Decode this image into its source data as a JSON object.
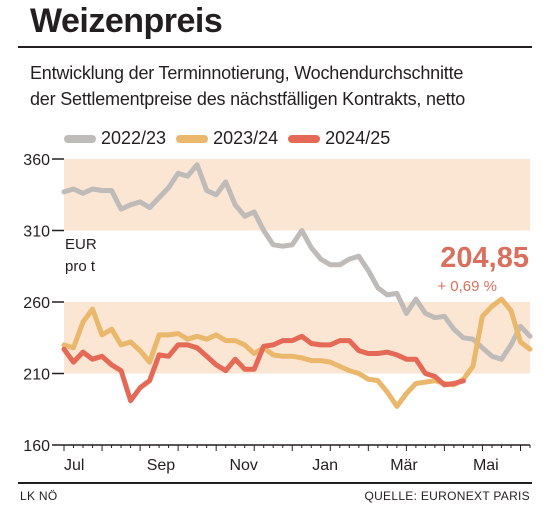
{
  "header": {
    "title": "Weizenpreis",
    "subtitle_line1": "Entwicklung der Terminnotierung, Wochendurchschnitte",
    "subtitle_line2": "der Settlementpreise des nächstfälligen Kontrakts, netto"
  },
  "footer": {
    "left": "LK NÖ",
    "right": "QUELLE: EURONEXT PARIS"
  },
  "colors": {
    "s2022": "#bfbbb8",
    "s2023": "#e9b86c",
    "s2024": "#e46a57",
    "band": "#fbe6d3",
    "callout": "#d9705e"
  },
  "chart_data": {
    "type": "line",
    "unit_label_line1": "EUR",
    "unit_label_line2": "pro t",
    "callout_value": "204,85",
    "callout_change": "+ 0,69 %",
    "ylim": [
      160,
      360
    ],
    "yticks": [
      "360",
      "310",
      "260",
      "210",
      "160"
    ],
    "xlim": [
      0,
      49
    ],
    "x_labels": [
      {
        "label": "Jul",
        "x": 0
      },
      {
        "label": "Sep",
        "x": 8.7
      },
      {
        "label": "Nov",
        "x": 17.4
      },
      {
        "label": "Jan",
        "x": 26.1
      },
      {
        "label": "Mär",
        "x": 34.3
      },
      {
        "label": "Mai",
        "x": 43
      }
    ],
    "series": [
      {
        "name": "2022/23",
        "values": [
          337,
          339,
          336,
          339,
          338,
          338,
          325,
          328,
          330,
          326,
          333,
          340,
          350,
          348,
          356,
          338,
          335,
          344,
          328,
          320,
          323,
          310,
          300,
          299,
          300,
          310,
          298,
          290,
          286,
          286,
          290,
          292,
          282,
          270,
          265,
          266,
          252,
          262,
          252,
          249,
          250,
          241,
          235,
          234,
          228,
          222,
          220,
          230,
          243,
          236
        ]
      },
      {
        "name": "2023/24",
        "values": [
          230,
          228,
          246,
          255,
          237,
          241,
          230,
          232,
          226,
          218,
          237,
          237,
          238,
          234,
          236,
          234,
          237,
          233,
          233,
          230,
          224,
          228,
          223,
          222,
          222,
          221,
          219,
          219,
          218,
          215,
          212,
          210,
          206,
          205,
          197,
          187,
          196,
          203,
          204,
          205,
          203,
          202,
          206,
          215,
          250,
          257,
          262,
          254,
          232,
          227
        ]
      },
      {
        "name": "2024/25",
        "values": [
          227,
          218,
          225,
          220,
          222,
          216,
          212,
          191,
          200,
          205,
          223,
          222,
          230,
          230,
          228,
          222,
          216,
          212,
          220,
          213,
          213,
          229,
          230,
          233,
          233,
          236,
          231,
          230,
          230,
          233,
          233,
          226,
          224,
          224,
          225,
          223,
          220,
          220,
          210,
          208,
          202,
          203,
          204.85
        ]
      }
    ]
  }
}
